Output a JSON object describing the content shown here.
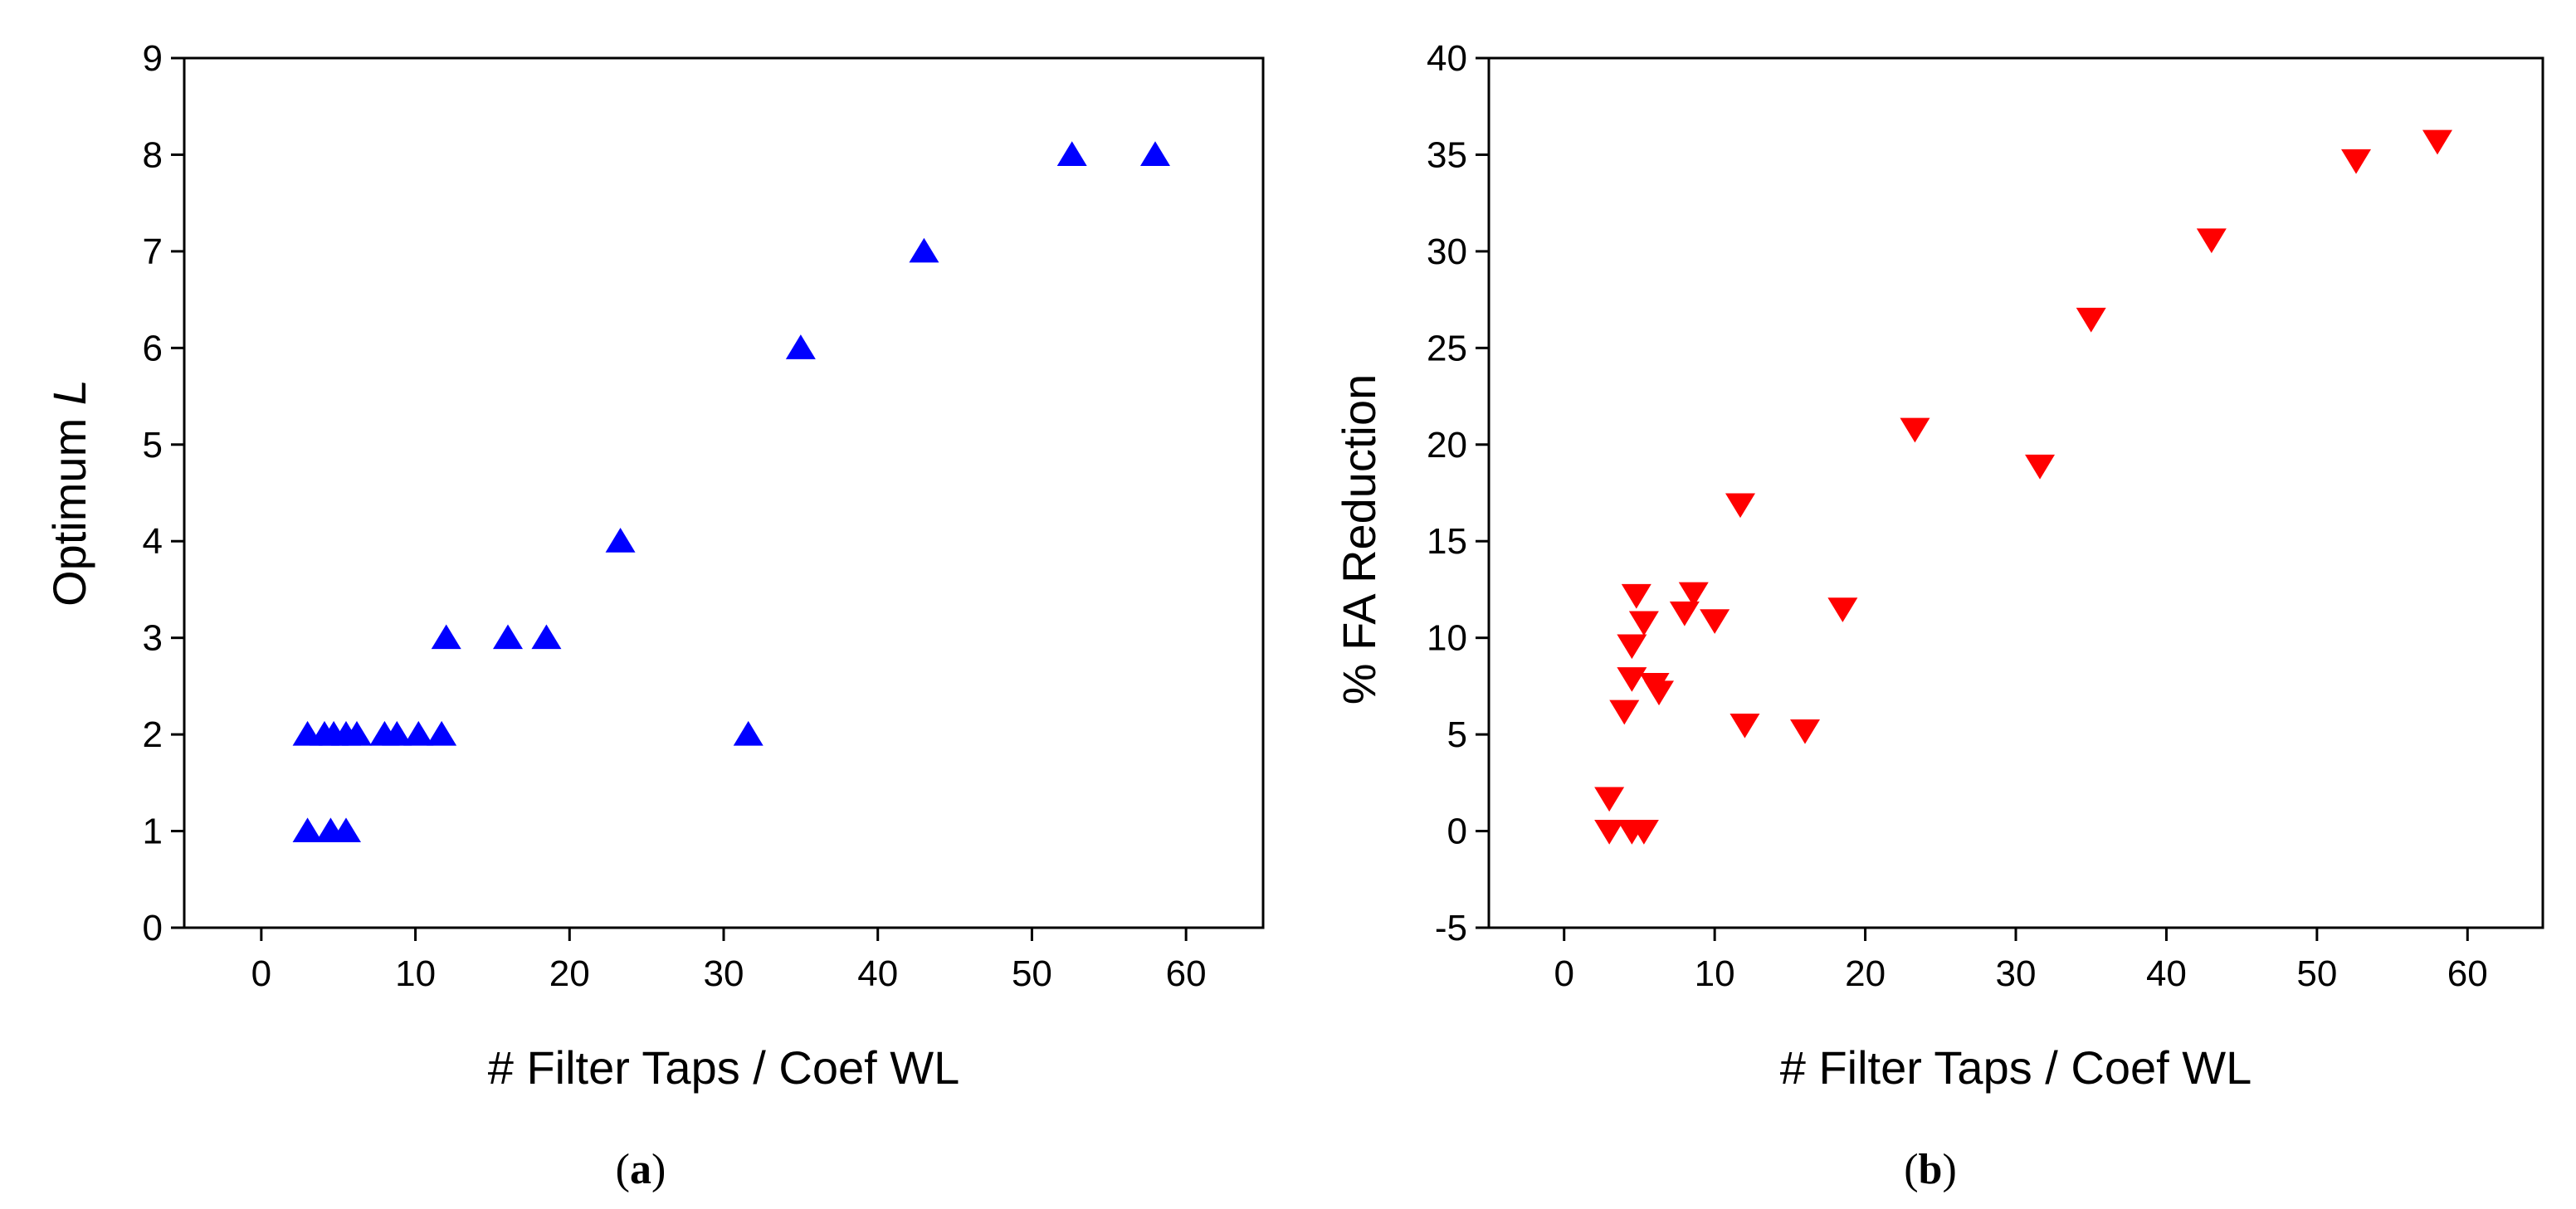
{
  "chart_data": [
    {
      "type": "scatter",
      "xlabel": "# Filter Taps / Coef WL",
      "ylabel_prefix": "Optimum ",
      "ylabel_italic": "L",
      "caption_open": "(",
      "caption_letter": "a",
      "caption_close": ")",
      "xlim": [
        -5,
        65
      ],
      "ylim": [
        0,
        9
      ],
      "xticks": [
        0,
        10,
        20,
        30,
        40,
        50,
        60
      ],
      "yticks": [
        0,
        1,
        2,
        3,
        4,
        5,
        6,
        7,
        8,
        9
      ],
      "marker": "triangle-up",
      "color": "#0000ff",
      "series": [
        {
          "name": "Optimum L",
          "points": [
            [
              3.0,
              2
            ],
            [
              4.1,
              2
            ],
            [
              4.7,
              2
            ],
            [
              5.5,
              2
            ],
            [
              6.2,
              2
            ],
            [
              8.0,
              2
            ],
            [
              8.8,
              2
            ],
            [
              10.2,
              2
            ],
            [
              11.7,
              2
            ],
            [
              3.0,
              1
            ],
            [
              4.5,
              1
            ],
            [
              5.5,
              1
            ],
            [
              12.0,
              3
            ],
            [
              16.0,
              3
            ],
            [
              18.5,
              3
            ],
            [
              23.3,
              4
            ],
            [
              31.6,
              2
            ],
            [
              35.0,
              6
            ],
            [
              43.0,
              7
            ],
            [
              52.6,
              8
            ],
            [
              58.0,
              8
            ]
          ]
        }
      ]
    },
    {
      "type": "scatter",
      "xlabel": "# Filter Taps / Coef WL",
      "ylabel": "% FA Reduction",
      "caption_open": "(",
      "caption_letter": "b",
      "caption_close": ")",
      "xlim": [
        -5,
        65
      ],
      "ylim": [
        -5,
        40
      ],
      "xticks": [
        0,
        10,
        20,
        30,
        40,
        50,
        60
      ],
      "yticks": [
        -5,
        0,
        5,
        10,
        15,
        20,
        25,
        30,
        35,
        40
      ],
      "marker": "triangle-down",
      "color": "#ff0000",
      "series": [
        {
          "name": "% FA Reduction",
          "points": [
            [
              3.0,
              1.7
            ],
            [
              3.0,
              0
            ],
            [
              4.5,
              0
            ],
            [
              5.3,
              0
            ],
            [
              4.0,
              6.2
            ],
            [
              4.5,
              7.9
            ],
            [
              4.5,
              9.6
            ],
            [
              4.8,
              12.2
            ],
            [
              5.3,
              10.8
            ],
            [
              6.0,
              7.6
            ],
            [
              6.3,
              7.2
            ],
            [
              8.0,
              11.3
            ],
            [
              8.6,
              12.3
            ],
            [
              10.0,
              10.9
            ],
            [
              11.7,
              16.9
            ],
            [
              12.0,
              5.5
            ],
            [
              16.0,
              5.2
            ],
            [
              18.5,
              11.5
            ],
            [
              23.3,
              20.8
            ],
            [
              31.6,
              18.9
            ],
            [
              35.0,
              26.5
            ],
            [
              43.0,
              30.6
            ],
            [
              52.6,
              34.7
            ],
            [
              58.0,
              35.7
            ]
          ]
        }
      ]
    }
  ]
}
